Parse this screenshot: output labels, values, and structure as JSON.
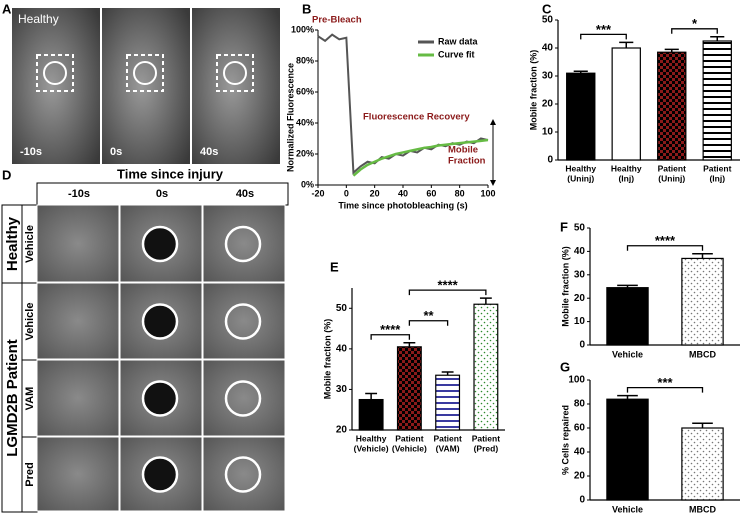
{
  "panel_labels": [
    "A",
    "B",
    "C",
    "D",
    "E",
    "F",
    "G"
  ],
  "panel_a": {
    "label": "Healthy",
    "times": [
      "-10s",
      "0s",
      "40s"
    ]
  },
  "panel_d": {
    "title": "Time since injury",
    "times": [
      "-10s",
      "0s",
      "40s"
    ],
    "groups": [
      "Healthy",
      "LGMD2B Patient"
    ],
    "rows": [
      "Vehicle",
      "Vehicle",
      "VAM",
      "Pred"
    ]
  },
  "chart_data": [
    {
      "type": "line",
      "ylabel": "Normalized Fluorescence",
      "xlabel": "Time since photobleaching (s)",
      "xlim": [
        -20,
        100
      ],
      "xticks": [
        -20,
        0,
        20,
        40,
        60,
        80,
        100
      ],
      "ylim": [
        0,
        100
      ],
      "yticks": [
        {
          "value": 0,
          "label": "0%"
        },
        {
          "value": 20,
          "label": "20%"
        },
        {
          "value": 40,
          "label": "40%"
        },
        {
          "value": 60,
          "label": "60%"
        },
        {
          "value": 80,
          "label": "80%"
        },
        {
          "value": 100,
          "label": "100%"
        }
      ],
      "x": [
        -20,
        -15,
        -10,
        -5,
        0,
        5,
        10,
        15,
        20,
        25,
        30,
        35,
        40,
        45,
        50,
        55,
        60,
        65,
        70,
        75,
        80,
        85,
        90,
        95,
        100
      ],
      "series": [
        {
          "name": "Raw data",
          "color": "#555555",
          "values": [
            96,
            93,
            97,
            94,
            95,
            8,
            12,
            15,
            14,
            18,
            17,
            20,
            19,
            22,
            21,
            24,
            23,
            26,
            25,
            27,
            26,
            28,
            27,
            30,
            29
          ]
        },
        {
          "name": "Curve fit",
          "color": "#66bb44",
          "values": [
            null,
            null,
            null,
            null,
            null,
            6,
            10,
            13,
            15,
            17,
            18.5,
            20,
            21,
            22,
            23,
            24,
            24.5,
            25.5,
            26,
            26.5,
            27,
            27.5,
            28,
            28.5,
            29
          ]
        }
      ],
      "annotations": [
        {
          "text": "Pre-Bleach"
        },
        {
          "text": "Fluorescence Recovery"
        },
        {
          "text": [
            "Mobile",
            "Fraction"
          ]
        }
      ],
      "legend": "upper right"
    },
    {
      "type": "bar",
      "ylabel": "Mobile fraction (%)",
      "categories": [
        [
          "Healthy",
          "(Uninj)"
        ],
        [
          "Healthy",
          "(Inj)"
        ],
        [
          "Patient",
          "(Uninj)"
        ],
        [
          "Patient",
          "(Inj)"
        ]
      ],
      "values": [
        31,
        40,
        38.5,
        42.5
      ],
      "errors": [
        0.7,
        2,
        1,
        1.5
      ],
      "colors": [
        "#000000",
        "#ffffff",
        "#8b1a1a",
        "#ffffff"
      ],
      "patterns": [
        "solid",
        "solid",
        "checkered",
        "striped"
      ],
      "ylim": [
        0,
        50
      ],
      "yticks": [
        0,
        10,
        20,
        30,
        40,
        50
      ],
      "annotations": [
        {
          "text": "***",
          "from": 0,
          "to": 1
        },
        {
          "text": "*",
          "from": 2,
          "to": 3
        }
      ]
    },
    {
      "type": "bar",
      "ylabel": "Mobile fraction (%)",
      "categories": [
        [
          "Healthy",
          "(Vehicle)"
        ],
        [
          "Patient",
          "(Vehicle)"
        ],
        [
          "Patient",
          "(VAM)"
        ],
        [
          "Patient",
          "(Pred)"
        ]
      ],
      "values": [
        27.5,
        40.5,
        33.5,
        51
      ],
      "errors": [
        1.5,
        1,
        0.8,
        1.5
      ],
      "colors": [
        "#000000",
        "#8b1a1a",
        "#3a3aa0",
        "#2e8b2e"
      ],
      "patterns": [
        "solid",
        "checkered",
        "striped",
        "dotted"
      ],
      "ylim": [
        20,
        55
      ],
      "yticks": [
        20,
        30,
        40,
        50
      ],
      "annotations": [
        {
          "text": "****",
          "from": 0,
          "to": 1
        },
        {
          "text": "**",
          "from": 1,
          "to": 2
        },
        {
          "text": "****",
          "from": 1,
          "to": 3
        }
      ]
    },
    {
      "type": "bar",
      "ylabel": "Mobile fraction (%)",
      "categories": [
        "Vehicle",
        "MBCD"
      ],
      "values": [
        24.5,
        37
      ],
      "errors": [
        1,
        2
      ],
      "colors": [
        "#000000",
        "#777777"
      ],
      "patterns": [
        "solid",
        "dotted"
      ],
      "ylim": [
        0,
        50
      ],
      "yticks": [
        0,
        10,
        20,
        30,
        40,
        50
      ],
      "annotations": [
        {
          "text": "****",
          "from": 0,
          "to": 1
        }
      ]
    },
    {
      "type": "bar",
      "ylabel": "% Cells repaired",
      "categories": [
        "Vehicle",
        "MBCD"
      ],
      "values": [
        84,
        60
      ],
      "errors": [
        3,
        4
      ],
      "colors": [
        "#000000",
        "#777777"
      ],
      "patterns": [
        "solid",
        "dotted"
      ],
      "ylim": [
        0,
        100
      ],
      "yticks": [
        0,
        20,
        40,
        60,
        80,
        100
      ],
      "annotations": [
        {
          "text": "***",
          "from": 0,
          "to": 1
        }
      ]
    }
  ]
}
